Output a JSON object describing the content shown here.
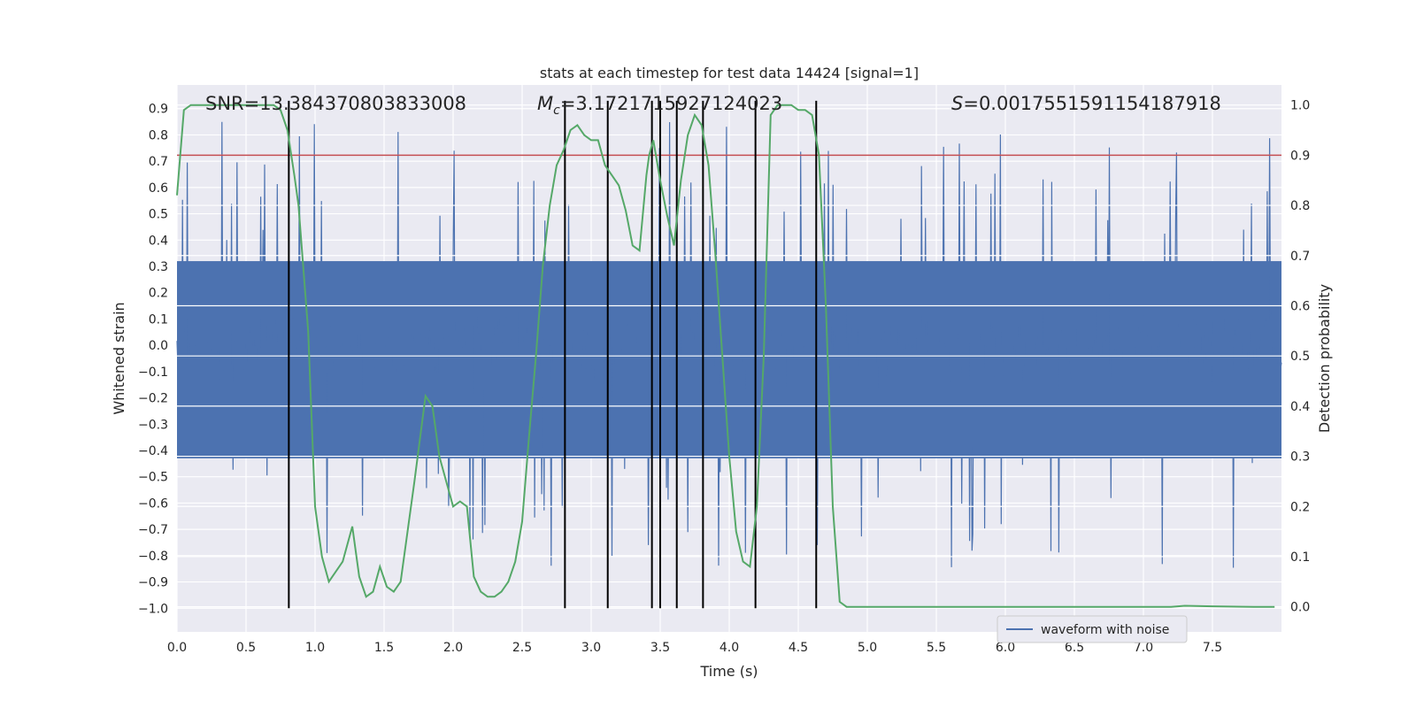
{
  "chart_data": {
    "type": "line",
    "title": "stats at each timestep for test data 14424 [signal=1]",
    "xlabel": "Time (s)",
    "ylabel": "Whitened strain",
    "y2label": "Detection probability",
    "xlim": [
      0.0,
      8.0
    ],
    "ylim": [
      -1.09,
      0.99
    ],
    "y2lim": [
      -0.05,
      1.04
    ],
    "xticks": [
      "0.0",
      "0.5",
      "1.0",
      "1.5",
      "2.0",
      "2.5",
      "3.0",
      "3.5",
      "4.0",
      "4.5",
      "5.0",
      "5.5",
      "6.0",
      "6.5",
      "7.0",
      "7.5"
    ],
    "yticks": [
      "0.9",
      "0.8",
      "0.7",
      "0.6",
      "0.5",
      "0.4",
      "0.3",
      "0.2",
      "0.1",
      "0.0",
      "−0.1",
      "−0.2",
      "−0.3",
      "−0.4",
      "−0.5",
      "−0.6",
      "−0.7",
      "−0.8",
      "−0.9",
      "−1.0"
    ],
    "y2ticks": [
      "1.0",
      "0.9",
      "0.8",
      "0.7",
      "0.6",
      "0.5",
      "0.4",
      "0.3",
      "0.2",
      "0.1",
      "0.0"
    ],
    "annotations": {
      "snr_label": "SNR=13.384370803833008",
      "mc_symbol": "M",
      "mc_subscript": "c",
      "mc_value": "=3.1721715927124023",
      "s_symbol": "S",
      "s_value": "=0.0017551591154187918"
    },
    "threshold": {
      "y2": 0.9,
      "color": "#c44e52"
    },
    "detection_markers_x": [
      0.81,
      2.81,
      3.12,
      3.44,
      3.5,
      3.62,
      3.81,
      4.19,
      4.63
    ],
    "series": [
      {
        "name": "waveform with noise",
        "color": "#4c72b0",
        "band_y": [
          -0.43,
          0.32
        ],
        "sample_count": 1400,
        "seed": 14424
      },
      {
        "name": "Detection probability",
        "color": "#55a868",
        "axis": "right",
        "x": [
          0.0,
          0.05,
          0.1,
          0.15,
          0.2,
          0.3,
          0.4,
          0.5,
          0.6,
          0.7,
          0.75,
          0.8,
          0.85,
          0.88,
          0.95,
          1.0,
          1.05,
          1.1,
          1.2,
          1.27,
          1.32,
          1.37,
          1.42,
          1.47,
          1.52,
          1.57,
          1.62,
          1.67,
          1.72,
          1.8,
          1.85,
          1.9,
          2.0,
          2.05,
          2.1,
          2.15,
          2.2,
          2.25,
          2.3,
          2.35,
          2.4,
          2.45,
          2.5,
          2.55,
          2.6,
          2.65,
          2.7,
          2.75,
          2.8,
          2.85,
          2.9,
          2.95,
          3.0,
          3.05,
          3.1,
          3.15,
          3.2,
          3.25,
          3.3,
          3.35,
          3.4,
          3.42,
          3.45,
          3.5,
          3.55,
          3.6,
          3.65,
          3.7,
          3.75,
          3.8,
          3.85,
          3.9,
          3.95,
          4.0,
          4.05,
          4.1,
          4.15,
          4.2,
          4.25,
          4.3,
          4.35,
          4.4,
          4.45,
          4.5,
          4.55,
          4.6,
          4.65,
          4.7,
          4.75,
          4.8,
          4.85,
          4.9,
          5.0,
          5.2,
          5.5,
          5.8,
          6.0,
          6.5,
          7.0,
          7.2,
          7.3,
          7.5,
          7.8,
          7.95
        ],
        "y": [
          0.82,
          0.99,
          1.0,
          1.0,
          1.0,
          1.0,
          1.0,
          1.0,
          1.0,
          1.0,
          0.99,
          0.95,
          0.86,
          0.8,
          0.55,
          0.2,
          0.1,
          0.05,
          0.09,
          0.16,
          0.06,
          0.02,
          0.03,
          0.08,
          0.04,
          0.03,
          0.05,
          0.15,
          0.25,
          0.42,
          0.4,
          0.3,
          0.2,
          0.21,
          0.2,
          0.06,
          0.03,
          0.02,
          0.02,
          0.03,
          0.05,
          0.09,
          0.17,
          0.34,
          0.5,
          0.68,
          0.8,
          0.88,
          0.91,
          0.95,
          0.96,
          0.94,
          0.93,
          0.93,
          0.88,
          0.86,
          0.84,
          0.79,
          0.72,
          0.71,
          0.86,
          0.9,
          0.93,
          0.85,
          0.78,
          0.72,
          0.85,
          0.94,
          0.98,
          0.96,
          0.88,
          0.7,
          0.5,
          0.3,
          0.15,
          0.09,
          0.08,
          0.2,
          0.5,
          0.98,
          1.0,
          1.0,
          1.0,
          0.99,
          0.99,
          0.98,
          0.9,
          0.6,
          0.2,
          0.01,
          0.0,
          0.0,
          0.0,
          0.0,
          0.0,
          0.0,
          0.0,
          0.0,
          0.0,
          0.0,
          0.002,
          0.001,
          0.0,
          0.0
        ]
      }
    ],
    "legend": {
      "placement": "bottom-center",
      "label": "waveform with noise"
    }
  }
}
